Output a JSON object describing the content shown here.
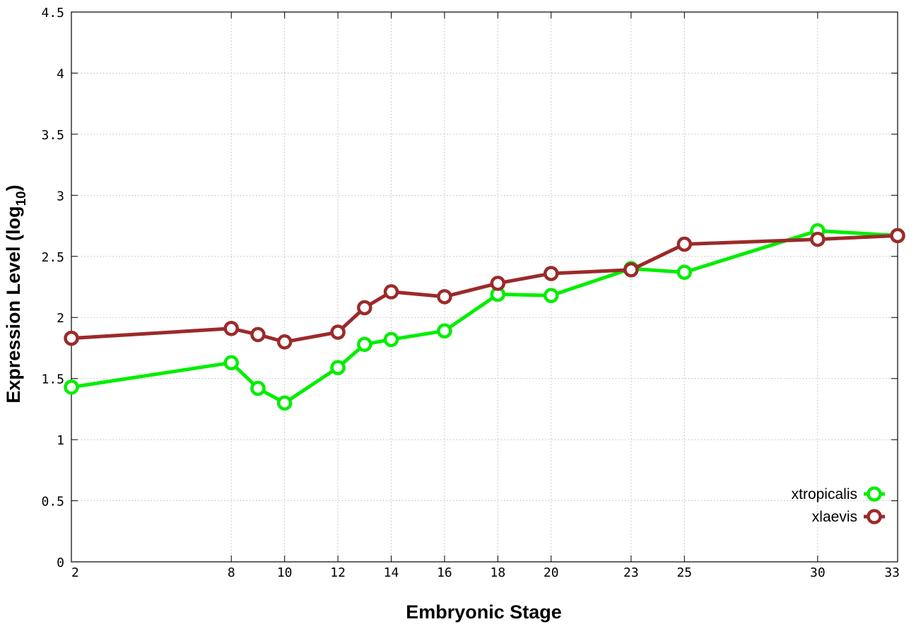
{
  "chart_data": {
    "type": "line",
    "xlabel": "Embryonic Stage",
    "ylabel": "Expression Level (log",
    "ylabel_sub": "10",
    "ylabel_close": ")",
    "x": [
      2,
      8,
      9,
      10,
      12,
      13,
      14,
      16,
      18,
      20,
      23,
      25,
      30,
      33
    ],
    "x_ticks": [
      2,
      8,
      10,
      12,
      14,
      16,
      18,
      20,
      23,
      25,
      30,
      33
    ],
    "y_ticks": [
      "0",
      "0.5",
      "1",
      "1.5",
      "2",
      "2.5",
      "3",
      "3.5",
      "4",
      "4.5"
    ],
    "xlim": [
      2,
      33
    ],
    "ylim": [
      0,
      4.5
    ],
    "grid": true,
    "legend_position": "bottom-right",
    "series": [
      {
        "name": "xtropicalis",
        "color": "#00ee00",
        "values": [
          1.43,
          1.63,
          1.42,
          1.3,
          1.59,
          1.78,
          1.82,
          1.89,
          2.19,
          2.18,
          2.4,
          2.37,
          2.71,
          2.67
        ]
      },
      {
        "name": "xlaevis",
        "color": "#9b2a2a",
        "values": [
          1.83,
          1.91,
          1.86,
          1.8,
          1.88,
          2.08,
          2.21,
          2.17,
          2.28,
          2.36,
          2.39,
          2.6,
          2.64,
          2.67
        ]
      }
    ]
  }
}
